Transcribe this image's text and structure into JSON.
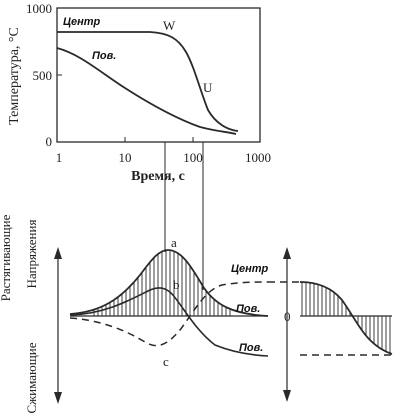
{
  "top_chart": {
    "ylabel": "Температура, °С",
    "xlabel": "Время, с",
    "y_ticks": [
      "0",
      "500",
      "1000"
    ],
    "x_ticks": [
      "1",
      "10",
      "100",
      "1000"
    ],
    "y_range": [
      0,
      1000
    ],
    "x_scale": "log",
    "x_range": [
      1,
      1000
    ],
    "curves": [
      {
        "label": "Центр",
        "marker": "W"
      },
      {
        "label": "Пов.",
        "marker": "U"
      }
    ]
  },
  "bottom_diagram": {
    "axis_title": "Напряжения",
    "axis_positive": "Растягивающие",
    "axis_negative": "Сжимающие",
    "curve_labels": [
      "a",
      "b",
      "c"
    ],
    "right_labels": {
      "center": "Центр",
      "surface_upper": "Пов.",
      "surface_lower": "Пов."
    },
    "zero_label": "0"
  }
}
